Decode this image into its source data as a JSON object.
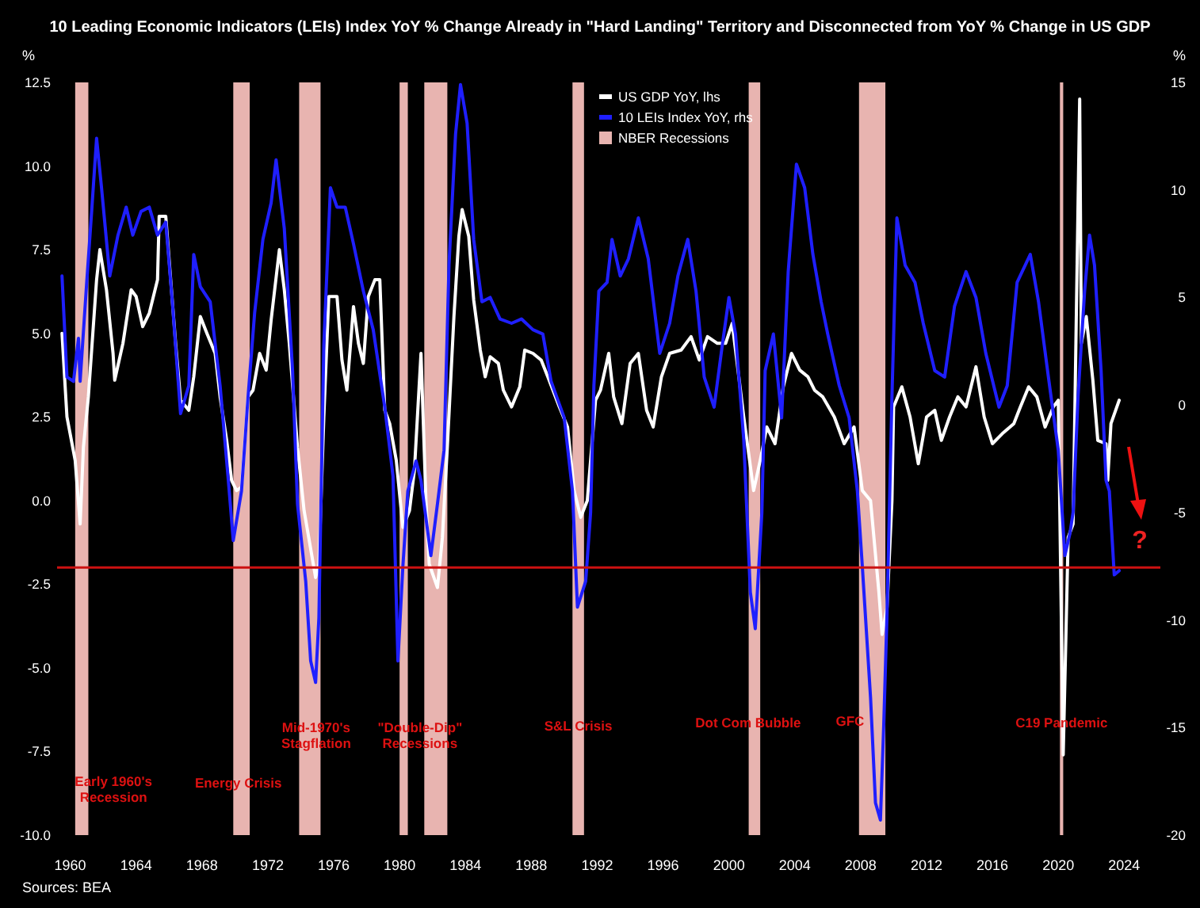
{
  "chart_data": {
    "type": "line",
    "title": "10 Leading Economic Indicators (LEIs) Index YoY % Change Already in \"Hard Landing\" Territory and Disconnected from YoY % Change in US GDP",
    "ylabel": "%",
    "y2label": "%",
    "xlim": [
      1959.2,
      2026.2
    ],
    "xticks": [
      1960,
      1964,
      1968,
      1972,
      1976,
      1980,
      1984,
      1988,
      1992,
      1996,
      2000,
      2004,
      2008,
      2012,
      2016,
      2020,
      2024
    ],
    "ylim": [
      -10,
      12.5
    ],
    "yticks": [
      {
        "value": 12.5,
        "label": "12.5"
      },
      {
        "value": 10,
        "label": "10.0"
      },
      {
        "value": 7.5,
        "label": "7.5"
      },
      {
        "value": 5,
        "label": "5.0"
      },
      {
        "value": 2.5,
        "label": "2.5"
      },
      {
        "value": 0,
        "label": "0.0"
      },
      {
        "value": -2.5,
        "label": "-2.5"
      },
      {
        "value": -5,
        "label": "-5.0"
      },
      {
        "value": -7.5,
        "label": "-7.5"
      },
      {
        "value": -10,
        "label": "-10.0"
      }
    ],
    "y2lim": [
      -20,
      15
    ],
    "y2ticks": [
      15,
      10,
      5,
      0,
      -5,
      -10,
      -15,
      -20
    ],
    "grid": false,
    "legend": "top",
    "series": [
      {
        "name": "US GDP YoY, lhs",
        "color": "#ffffff",
        "x": [
          1959.5,
          1959.8,
          1960.3,
          1960.6,
          1960.8,
          1961.1,
          1961.6,
          1961.8,
          1962.2,
          1962.6,
          1962.7,
          1963.2,
          1963.7,
          1964.0,
          1964.4,
          1964.8,
          1965.3,
          1965.4,
          1965.8,
          1966.1,
          1966.4,
          1966.7,
          1967.2,
          1967.5,
          1967.9,
          1968.3,
          1968.8,
          1969.1,
          1969.5,
          1969.8,
          1970.1,
          1970.4,
          1970.8,
          1971.1,
          1971.5,
          1971.9,
          1972.2,
          1972.7,
          1973.0,
          1973.3,
          1973.8,
          1974.2,
          1974.9,
          1975.1,
          1975.4,
          1975.7,
          1976.2,
          1976.5,
          1976.8,
          1977.2,
          1977.5,
          1977.8,
          1978.1,
          1978.5,
          1978.8,
          1979.1,
          1979.4,
          1979.8,
          1980.2,
          1980.6,
          1980.9,
          1981.3,
          1981.6,
          1981.8,
          1982.3,
          1982.6,
          1982.9,
          1983.3,
          1983.6,
          1983.8,
          1984.2,
          1984.5,
          1984.9,
          1985.2,
          1985.5,
          1986.0,
          1986.3,
          1986.8,
          1987.3,
          1987.6,
          1988.1,
          1988.6,
          1989.0,
          1989.7,
          1990.2,
          1990.6,
          1991.0,
          1991.4,
          1991.9,
          1992.2,
          1992.7,
          1993.0,
          1993.5,
          1994.0,
          1994.5,
          1995.0,
          1995.4,
          1995.9,
          1996.4,
          1997.1,
          1997.7,
          1998.2,
          1998.7,
          1999.3,
          1999.8,
          2000.2,
          2000.6,
          2000.9,
          2001.5,
          2001.9,
          2002.3,
          2002.8,
          2003.3,
          2003.8,
          2004.3,
          2004.8,
          2005.2,
          2005.7,
          2006.4,
          2007.0,
          2007.6,
          2008.1,
          2008.6,
          2009.1,
          2009.3,
          2009.6,
          2009.9,
          2010.0,
          2010.5,
          2011.0,
          2011.5,
          2012.0,
          2012.5,
          2012.9,
          2013.4,
          2013.9,
          2014.4,
          2015.0,
          2015.5,
          2016.0,
          2016.6,
          2017.3,
          2017.7,
          2018.2,
          2018.7,
          2019.2,
          2019.7,
          2020.0,
          2020.3,
          2020.6,
          2020.9,
          2021.3,
          2021.4,
          2021.7,
          2022.1,
          2022.4,
          2022.9,
          2023.0,
          2023.2,
          2023.7
        ],
        "values": [
          5.0,
          2.5,
          1.2,
          -0.7,
          1.6,
          3.1,
          6.6,
          7.5,
          6.3,
          4.4,
          3.6,
          4.7,
          6.3,
          6.1,
          5.2,
          5.6,
          6.6,
          8.5,
          8.5,
          6.6,
          4.7,
          3.0,
          2.7,
          3.7,
          5.5,
          5.0,
          4.4,
          3.1,
          1.8,
          0.6,
          0.3,
          0.4,
          3.1,
          3.3,
          4.4,
          3.9,
          5.4,
          7.5,
          6.3,
          4.7,
          1.6,
          -0.3,
          -2.3,
          -1.9,
          2.5,
          6.1,
          6.1,
          4.2,
          3.3,
          5.8,
          4.7,
          4.1,
          6.1,
          6.6,
          6.6,
          2.7,
          2.3,
          1.2,
          -0.8,
          -0.3,
          0.9,
          4.4,
          0.0,
          -1.9,
          -2.6,
          -1.1,
          1.6,
          5.5,
          7.9,
          8.7,
          7.9,
          6.0,
          4.5,
          3.7,
          4.3,
          4.1,
          3.3,
          2.8,
          3.4,
          4.5,
          4.4,
          4.2,
          3.7,
          2.8,
          2.2,
          0.3,
          -0.5,
          0.0,
          3.0,
          3.3,
          4.4,
          3.1,
          2.3,
          4.1,
          4.4,
          2.7,
          2.2,
          3.7,
          4.4,
          4.5,
          4.9,
          4.2,
          4.9,
          4.7,
          4.7,
          5.3,
          3.7,
          2.5,
          0.3,
          1.2,
          2.2,
          1.7,
          3.4,
          4.4,
          3.9,
          3.7,
          3.3,
          3.1,
          2.5,
          1.7,
          2.2,
          0.3,
          0.0,
          -2.7,
          -4.0,
          -3.2,
          0.0,
          2.8,
          3.4,
          2.5,
          1.1,
          2.5,
          2.7,
          1.8,
          2.5,
          3.1,
          2.8,
          4.0,
          2.5,
          1.7,
          2.0,
          2.3,
          2.8,
          3.4,
          3.1,
          2.2,
          2.8,
          3.0,
          -7.6,
          -1.1,
          -0.7,
          12.0,
          4.7,
          5.5,
          3.6,
          1.8,
          1.7,
          0.6,
          2.3,
          3.0
        ]
      },
      {
        "name": "10 LEIs Index YoY, rhs",
        "color": "#1f1fff",
        "axis": "y2",
        "x": [
          1959.5,
          1959.8,
          1960.2,
          1960.5,
          1960.6,
          1961.0,
          1961.3,
          1961.6,
          1961.9,
          1962.4,
          1962.9,
          1963.4,
          1963.8,
          1964.3,
          1964.8,
          1965.3,
          1965.8,
          1966.2,
          1966.7,
          1967.2,
          1967.5,
          1967.9,
          1968.5,
          1969.1,
          1969.6,
          1969.9,
          1970.4,
          1970.8,
          1971.2,
          1971.7,
          1972.2,
          1972.5,
          1973.0,
          1973.5,
          1973.8,
          1974.3,
          1974.6,
          1974.9,
          1975.1,
          1975.4,
          1975.8,
          1976.2,
          1976.7,
          1977.2,
          1977.8,
          1978.4,
          1979.1,
          1979.6,
          1979.9,
          1980.2,
          1980.5,
          1981.0,
          1981.3,
          1981.9,
          1982.3,
          1982.7,
          1983.0,
          1983.4,
          1983.7,
          1984.1,
          1984.5,
          1985.0,
          1985.5,
          1986.1,
          1986.8,
          1987.4,
          1988.1,
          1988.7,
          1989.2,
          1990.0,
          1990.5,
          1990.8,
          1991.3,
          1991.6,
          1991.8,
          1992.1,
          1992.6,
          1992.9,
          1993.4,
          1993.9,
          1994.5,
          1995.1,
          1995.8,
          1996.4,
          1996.9,
          1997.5,
          1998.0,
          1998.5,
          1999.1,
          1999.6,
          2000.0,
          2000.4,
          2000.9,
          2001.3,
          2001.6,
          2002.0,
          2002.2,
          2002.7,
          2003.2,
          2003.6,
          2004.1,
          2004.6,
          2005.1,
          2005.6,
          2006.0,
          2006.7,
          2007.3,
          2007.8,
          2008.1,
          2008.6,
          2008.9,
          2009.2,
          2009.4,
          2009.6,
          2009.9,
          2010.2,
          2010.7,
          2011.3,
          2011.8,
          2012.5,
          2013.1,
          2013.7,
          2014.4,
          2015.0,
          2015.6,
          2016.4,
          2016.9,
          2017.5,
          2018.3,
          2018.8,
          2019.4,
          2020.0,
          2020.4,
          2020.7,
          2020.9,
          2021.2,
          2021.6,
          2021.9,
          2022.2,
          2022.6,
          2022.9,
          2023.1,
          2023.4,
          2023.7
        ],
        "values": [
          6.0,
          1.3,
          1.1,
          3.1,
          1.1,
          5.7,
          9.0,
          12.4,
          10.1,
          6.0,
          7.9,
          9.2,
          7.9,
          9.0,
          9.2,
          7.9,
          8.5,
          4.8,
          -0.4,
          0.9,
          7.0,
          5.5,
          4.8,
          0.9,
          -3.5,
          -6.3,
          -4.0,
          0.4,
          4.3,
          7.7,
          9.4,
          11.4,
          8.2,
          1.6,
          -4.6,
          -8.2,
          -11.9,
          -12.9,
          -9.9,
          2.8,
          10.1,
          9.2,
          9.2,
          7.5,
          5.3,
          3.5,
          -0.1,
          -3.3,
          -11.9,
          -7.5,
          -4.0,
          -2.6,
          -3.5,
          -7.0,
          -4.6,
          -2.1,
          6.5,
          12.6,
          14.9,
          13.1,
          7.7,
          4.8,
          5.0,
          4.0,
          3.8,
          4.0,
          3.5,
          3.3,
          1.1,
          -0.6,
          -4.0,
          -9.4,
          -8.2,
          -5.0,
          0.9,
          5.3,
          5.7,
          7.7,
          6.0,
          6.8,
          8.7,
          6.8,
          2.4,
          3.8,
          6.0,
          7.7,
          5.3,
          1.3,
          -0.1,
          2.8,
          5.0,
          3.3,
          -1.6,
          -8.7,
          -10.4,
          -5.0,
          1.6,
          3.3,
          -0.6,
          6.2,
          11.2,
          10.1,
          7.0,
          4.8,
          3.3,
          0.9,
          -0.6,
          -4.0,
          -7.5,
          -13.6,
          -18.5,
          -19.3,
          -14.9,
          -9.7,
          0.4,
          8.7,
          6.5,
          5.7,
          3.8,
          1.6,
          1.3,
          4.6,
          6.2,
          5.0,
          2.4,
          -0.1,
          0.9,
          5.7,
          7.0,
          4.8,
          1.3,
          -2.1,
          -7.0,
          -6.0,
          -5.0,
          0.4,
          5.3,
          7.9,
          6.5,
          1.6,
          -3.5,
          -4.0,
          -7.9,
          -7.7
        ]
      }
    ],
    "bands": [
      {
        "axis": "x",
        "from": 1960.3,
        "to": 1961.1,
        "label": "Early 1960's Recession",
        "color": "#e8b4b0"
      },
      {
        "axis": "x",
        "from": 1969.9,
        "to": 1970.9,
        "label": "Energy Crisis",
        "color": "#e8b4b0"
      },
      {
        "axis": "x",
        "from": 1973.9,
        "to": 1975.2,
        "label": "Mid-1970's Stagflation",
        "color": "#e8b4b0"
      },
      {
        "axis": "x",
        "from": 1980.0,
        "to": 1980.5,
        "color": "#e8b4b0"
      },
      {
        "axis": "x",
        "from": 1981.5,
        "to": 1982.9,
        "label": "\"Double-Dip\" Recessions",
        "color": "#e8b4b0"
      },
      {
        "axis": "x",
        "from": 1990.5,
        "to": 1991.2,
        "label": "S&L Crisis",
        "color": "#e8b4b0"
      },
      {
        "axis": "x",
        "from": 2001.2,
        "to": 2001.9,
        "label": "Dot Com Bubble",
        "color": "#e8b4b0"
      },
      {
        "axis": "x",
        "from": 2007.9,
        "to": 2009.5,
        "label": "GFC",
        "color": "#e8b4b0"
      },
      {
        "axis": "x",
        "from": 2020.1,
        "to": 2020.3,
        "label": "C19 Pandemic",
        "color": "#e8b4b0"
      }
    ],
    "ref_lines": [
      {
        "axis": "y",
        "value": -2,
        "color": "#cc1111"
      }
    ],
    "annotations": [
      "?",
      "NBER Recessions",
      "Sources: BEA"
    ]
  }
}
